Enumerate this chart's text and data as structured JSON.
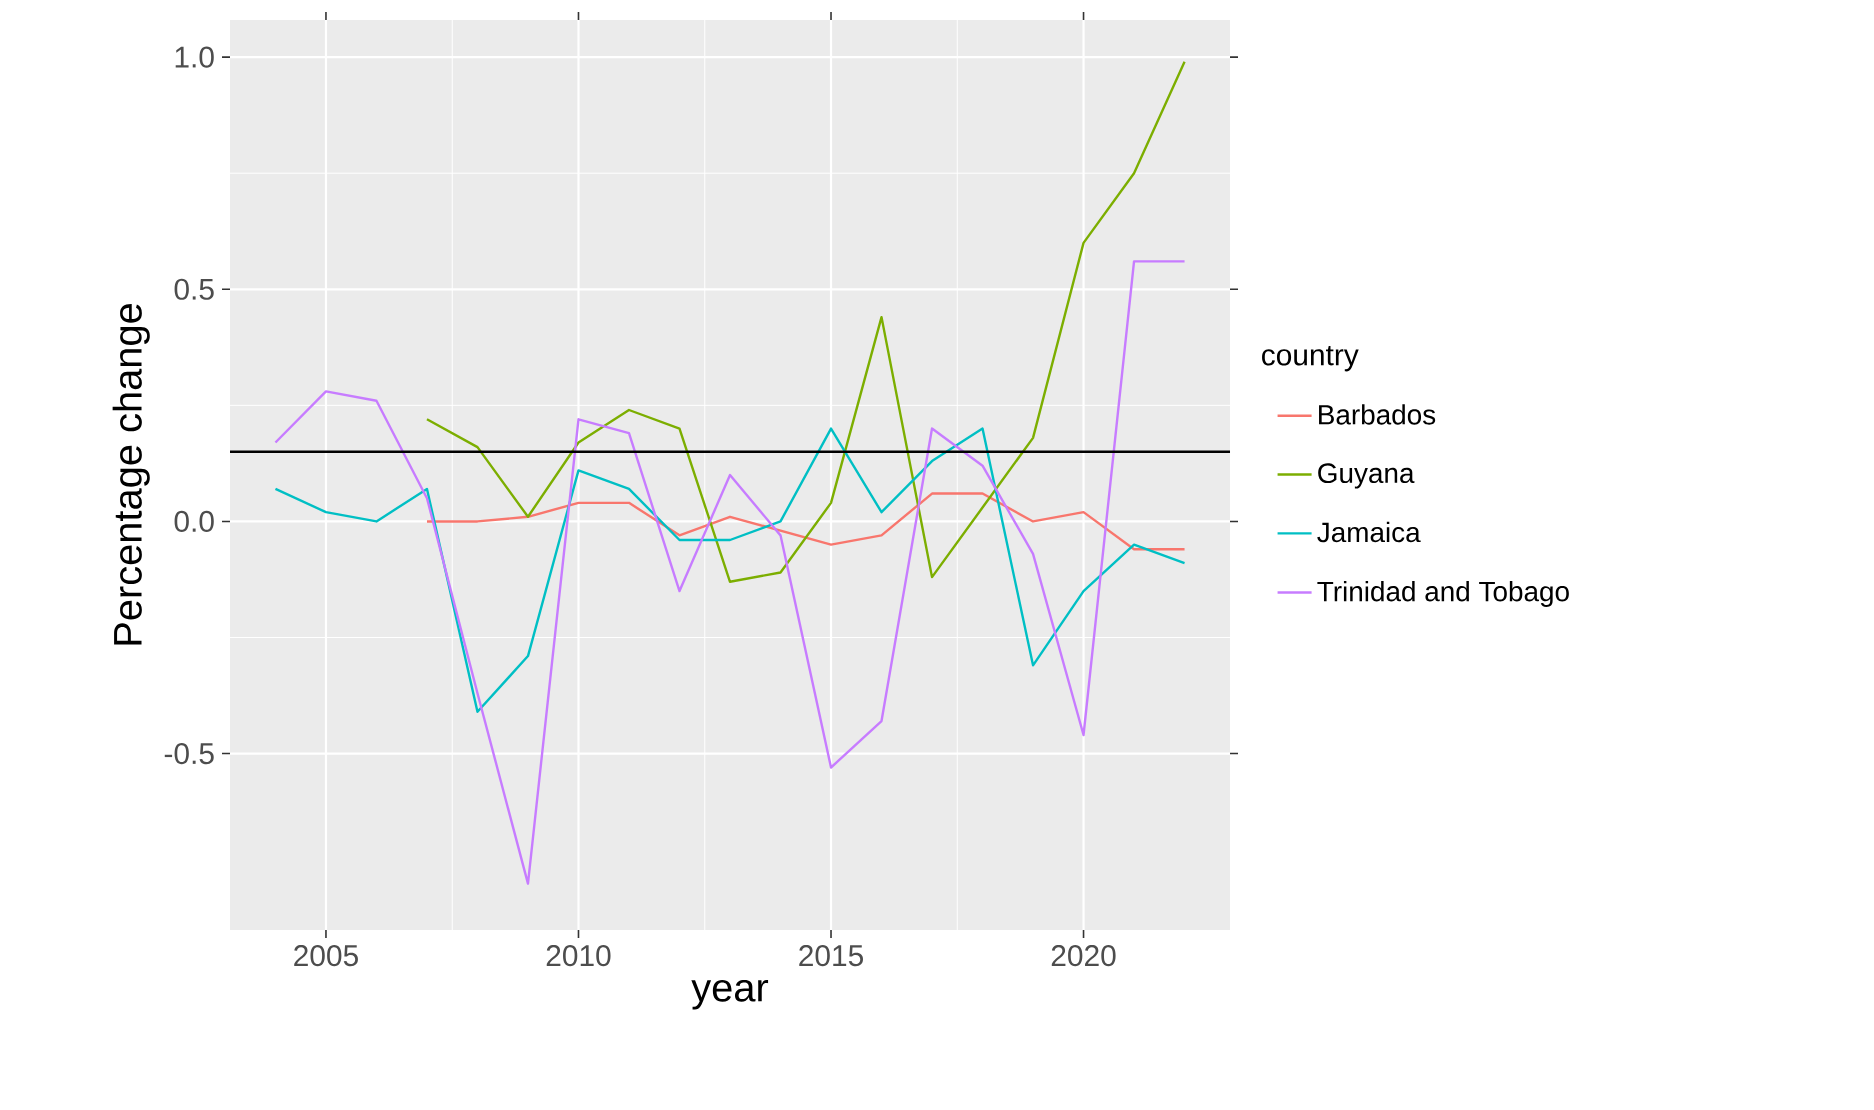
{
  "chart_data": {
    "type": "line",
    "xlabel": "year",
    "ylabel": "Percentage change",
    "legend_title": "country",
    "x": [
      2004,
      2005,
      2006,
      2007,
      2008,
      2009,
      2010,
      2011,
      2012,
      2013,
      2014,
      2015,
      2016,
      2017,
      2018,
      2019,
      2020,
      2021,
      2022
    ],
    "xlim": [
      2003.1,
      2022.9
    ],
    "xticks": [
      2005,
      2010,
      2015,
      2020
    ],
    "ylim": [
      -0.88,
      1.08
    ],
    "yticks": [
      {
        "value": -0.5,
        "label": "-0.5"
      },
      {
        "value": 0,
        "label": "0.0"
      },
      {
        "value": 0.5,
        "label": "0.5"
      },
      {
        "value": 1,
        "label": "1.0"
      }
    ],
    "grid": true,
    "legend": "right",
    "marker": "none",
    "line_style": "solid",
    "ref_lines": [
      {
        "axis": "y",
        "value": 0.15,
        "color": "#000000"
      }
    ],
    "series": [
      {
        "name": "Barbados",
        "color": "#F8766D",
        "values": [
          null,
          null,
          null,
          0.0,
          0.0,
          0.01,
          0.04,
          0.04,
          -0.03,
          0.01,
          -0.02,
          -0.05,
          -0.03,
          0.06,
          0.06,
          0.0,
          0.02,
          -0.06,
          -0.06
        ]
      },
      {
        "name": "Guyana",
        "color": "#7CAE00",
        "values": [
          null,
          null,
          null,
          0.22,
          0.16,
          0.01,
          0.17,
          0.24,
          0.2,
          -0.13,
          -0.11,
          0.04,
          0.44,
          -0.12,
          0.03,
          0.18,
          0.6,
          0.75,
          0.99
        ]
      },
      {
        "name": "Jamaica",
        "color": "#00BFC4",
        "values": [
          0.07,
          0.02,
          0.0,
          0.07,
          -0.41,
          -0.29,
          0.11,
          0.07,
          -0.04,
          -0.04,
          0.0,
          0.2,
          0.02,
          0.13,
          0.2,
          -0.31,
          -0.15,
          -0.05,
          -0.09
        ]
      },
      {
        "name": "Trinidad and Tobago",
        "color": "#C77CFF",
        "values": [
          0.17,
          0.28,
          0.26,
          0.05,
          -0.37,
          -0.78,
          0.22,
          0.19,
          -0.15,
          0.1,
          -0.03,
          -0.53,
          -0.43,
          0.2,
          0.12,
          -0.07,
          -0.46,
          0.56,
          0.56
        ]
      }
    ]
  }
}
